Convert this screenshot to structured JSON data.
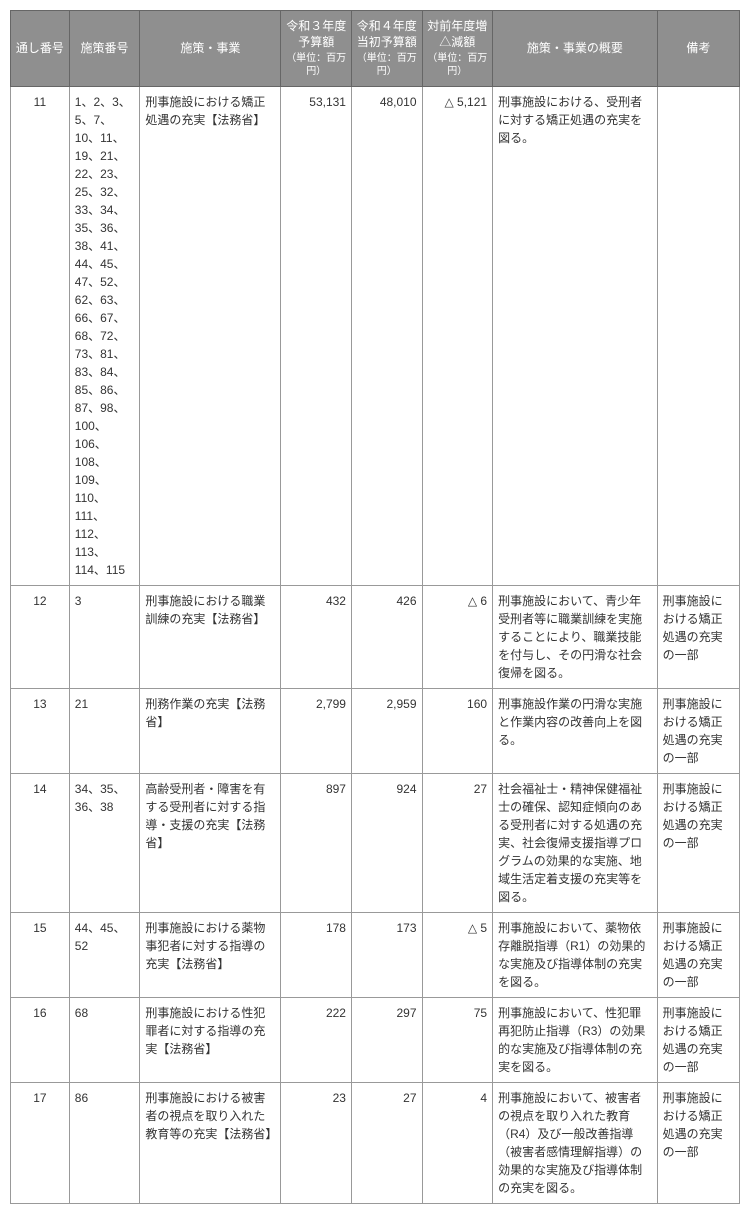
{
  "headers": {
    "serial": "通し番号",
    "policy": "施策番号",
    "name": "施策・事業",
    "r3": "令和３年度予算額",
    "r3_unit": "（単位：百万円）",
    "r4": "令和４年度当初予算額",
    "r4_unit": "（単位：百万円）",
    "diff": "対前年度増△減額",
    "diff_unit": "（単位：百万円）",
    "summary": "施策・事業の概要",
    "note": "備考"
  },
  "rows": [
    {
      "serial": "11",
      "policy": "1、2、3、5、7、10、11、19、21、22、23、25、32、33、34、35、36、38、41、44、45、47、52、62、63、66、67、68、72、73、81、83、84、85、86、87、98、100、106、108、109、110、111、112、113、114、115",
      "name": "刑事施設における矯正処遇の充実【法務省】",
      "r3": "53,131",
      "r4": "48,010",
      "diff": "△ 5,121",
      "summary": "刑事施設における、受刑者に対する矯正処遇の充実を図る。",
      "note": ""
    },
    {
      "serial": "12",
      "policy": "3",
      "name": "刑事施設における職業訓練の充実【法務省】",
      "r3": "432",
      "r4": "426",
      "diff": "△ 6",
      "summary": "刑事施設において、青少年受刑者等に職業訓練を実施することにより、職業技能を付与し、その円滑な社会復帰を図る。",
      "note": "刑事施設における矯正処遇の充実の一部"
    },
    {
      "serial": "13",
      "policy": "21",
      "name": "刑務作業の充実【法務省】",
      "r3": "2,799",
      "r4": "2,959",
      "diff": "160",
      "summary": "刑事施設作業の円滑な実施と作業内容の改善向上を図る。",
      "note": "刑事施設における矯正処遇の充実の一部"
    },
    {
      "serial": "14",
      "policy": "34、35、36、38",
      "name": "高齢受刑者・障害を有する受刑者に対する指導・支援の充実【法務省】",
      "r3": "897",
      "r4": "924",
      "diff": "27",
      "summary": "社会福祉士・精神保健福祉士の確保、認知症傾向のある受刑者に対する処遇の充実、社会復帰支援指導プログラムの効果的な実施、地域生活定着支援の充実等を図る。",
      "note": "刑事施設における矯正処遇の充実の一部"
    },
    {
      "serial": "15",
      "policy": "44、45、52",
      "name": "刑事施設における薬物事犯者に対する指導の充実【法務省】",
      "r3": "178",
      "r4": "173",
      "diff": "△ 5",
      "summary": "刑事施設において、薬物依存離脱指導（R1）の効果的な実施及び指導体制の充実を図る。",
      "note": "刑事施設における矯正処遇の充実の一部"
    },
    {
      "serial": "16",
      "policy": "68",
      "name": "刑事施設における性犯罪者に対する指導の充実【法務省】",
      "r3": "222",
      "r4": "297",
      "diff": "75",
      "summary": "刑事施設において、性犯罪再犯防止指導（R3）の効果的な実施及び指導体制の充実を図る。",
      "note": "刑事施設における矯正処遇の充実の一部"
    },
    {
      "serial": "17",
      "policy": "86",
      "name": "刑事施設における被害者の視点を取り入れた教育等の充実【法務省】",
      "r3": "23",
      "r4": "27",
      "diff": "4",
      "summary": "刑事施設において、被害者の視点を取り入れた教育（R4）及び一般改善指導（被害者感情理解指導）の効果的な実施及び指導体制の充実を図る。",
      "note": "刑事施設における矯正処遇の充実の一部"
    }
  ]
}
